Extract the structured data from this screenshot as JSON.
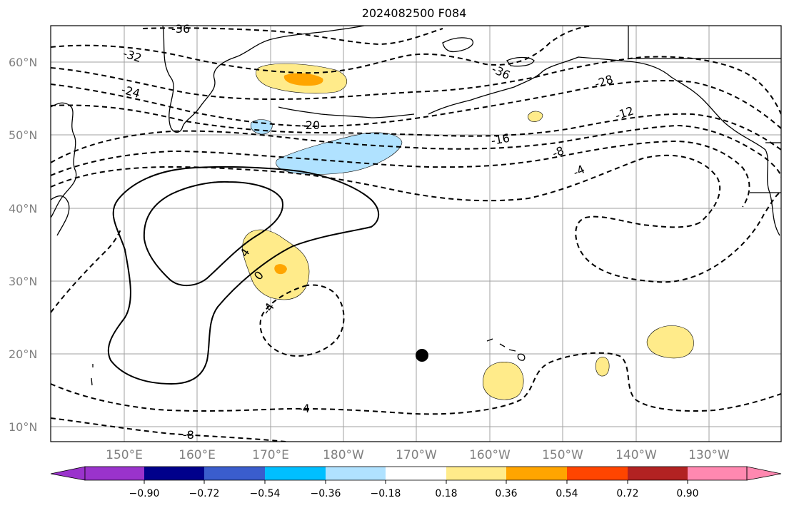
{
  "title": "2024082500 F084",
  "axes": {
    "lat_labels": [
      "60°N",
      "50°N",
      "40°N",
      "30°N",
      "20°N",
      "10°N"
    ],
    "lon_labels": [
      "150°E",
      "160°E",
      "170°E",
      "180°W",
      "170°W",
      "160°W",
      "150°W",
      "140°W",
      "130°W"
    ]
  },
  "contour_labels": {
    "c_m36a": "-36",
    "c_m32": "-32",
    "c_m24": "-24",
    "c_m20": "-20",
    "c_m36b": "-36",
    "c_m28": "-28",
    "c_m16": "-16",
    "c_m12": "-12",
    "c_m8": "-8",
    "c_m4a": "-4",
    "c_4": "4",
    "c_0": "0",
    "c_m4b": "-4",
    "c_m4c": "-4",
    "c_m8b": "-8"
  },
  "colorbar": {
    "ticks": [
      "−0.90",
      "−0.72",
      "−0.54",
      "−0.36",
      "−0.18",
      "0.18",
      "0.36",
      "0.54",
      "0.72",
      "0.90"
    ],
    "colors": [
      "#9a33cc",
      "#00008b",
      "#3a5dcd",
      "#00bfff",
      "#b0e2ff",
      "#ffffff",
      "#ffeb8a",
      "#ffa500",
      "#ff4500",
      "#b22222",
      "#ff88b0"
    ]
  },
  "markers": {
    "point_color": "#000000"
  }
}
